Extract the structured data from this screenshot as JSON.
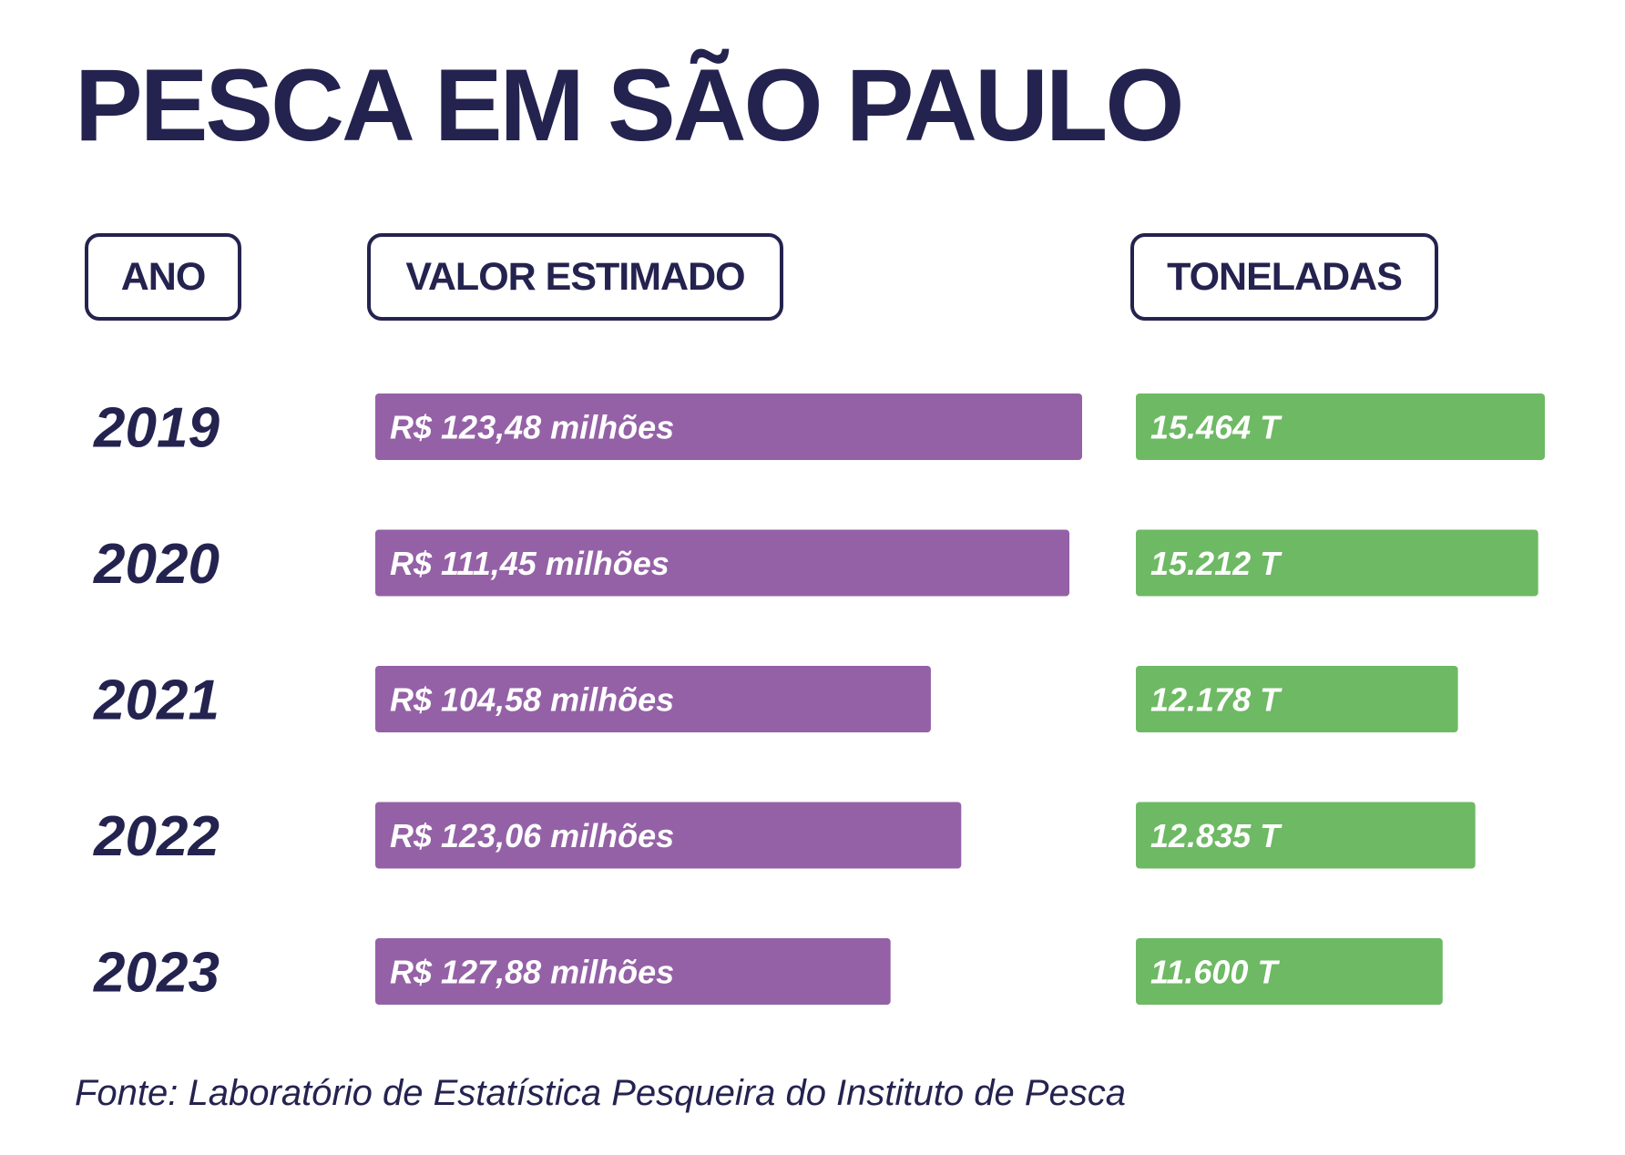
{
  "title": "PESCA EM SÃO PAULO",
  "headers": {
    "year": "ANO",
    "value": "VALOR ESTIMADO",
    "tons": "TONELADAS"
  },
  "source": "Fonte: Laboratório de Estatística Pesqueira do Instituto de Pesca",
  "colors": {
    "text": "#24234f",
    "value_bar": "#9461a6",
    "tons_bar": "#6eb964"
  },
  "chart_data": {
    "type": "bar",
    "title": "PESCA EM SÃO PAULO",
    "categories": [
      "2019",
      "2020",
      "2021",
      "2022",
      "2023"
    ],
    "series": [
      {
        "name": "VALOR ESTIMADO",
        "values": [
          123.48,
          111.45,
          104.58,
          123.06,
          127.88
        ],
        "labels": [
          "R$ 123,48 milhões",
          "R$ 111,45 milhões",
          "R$ 104,58 milhões",
          "R$ 123,06 milhões",
          "R$ 127,88 milhões"
        ],
        "bar_fill": [
          1.0,
          0.982,
          0.786,
          0.829,
          0.729
        ]
      },
      {
        "name": "TONELADAS",
        "values": [
          15464,
          15212,
          12178,
          12835,
          11600
        ],
        "labels": [
          "15.464 T",
          "15.212 T",
          "12.178 T",
          "12.835 T",
          "11.600 T"
        ]
      }
    ],
    "orientation": "horizontal",
    "grid": false,
    "legend": "none"
  }
}
